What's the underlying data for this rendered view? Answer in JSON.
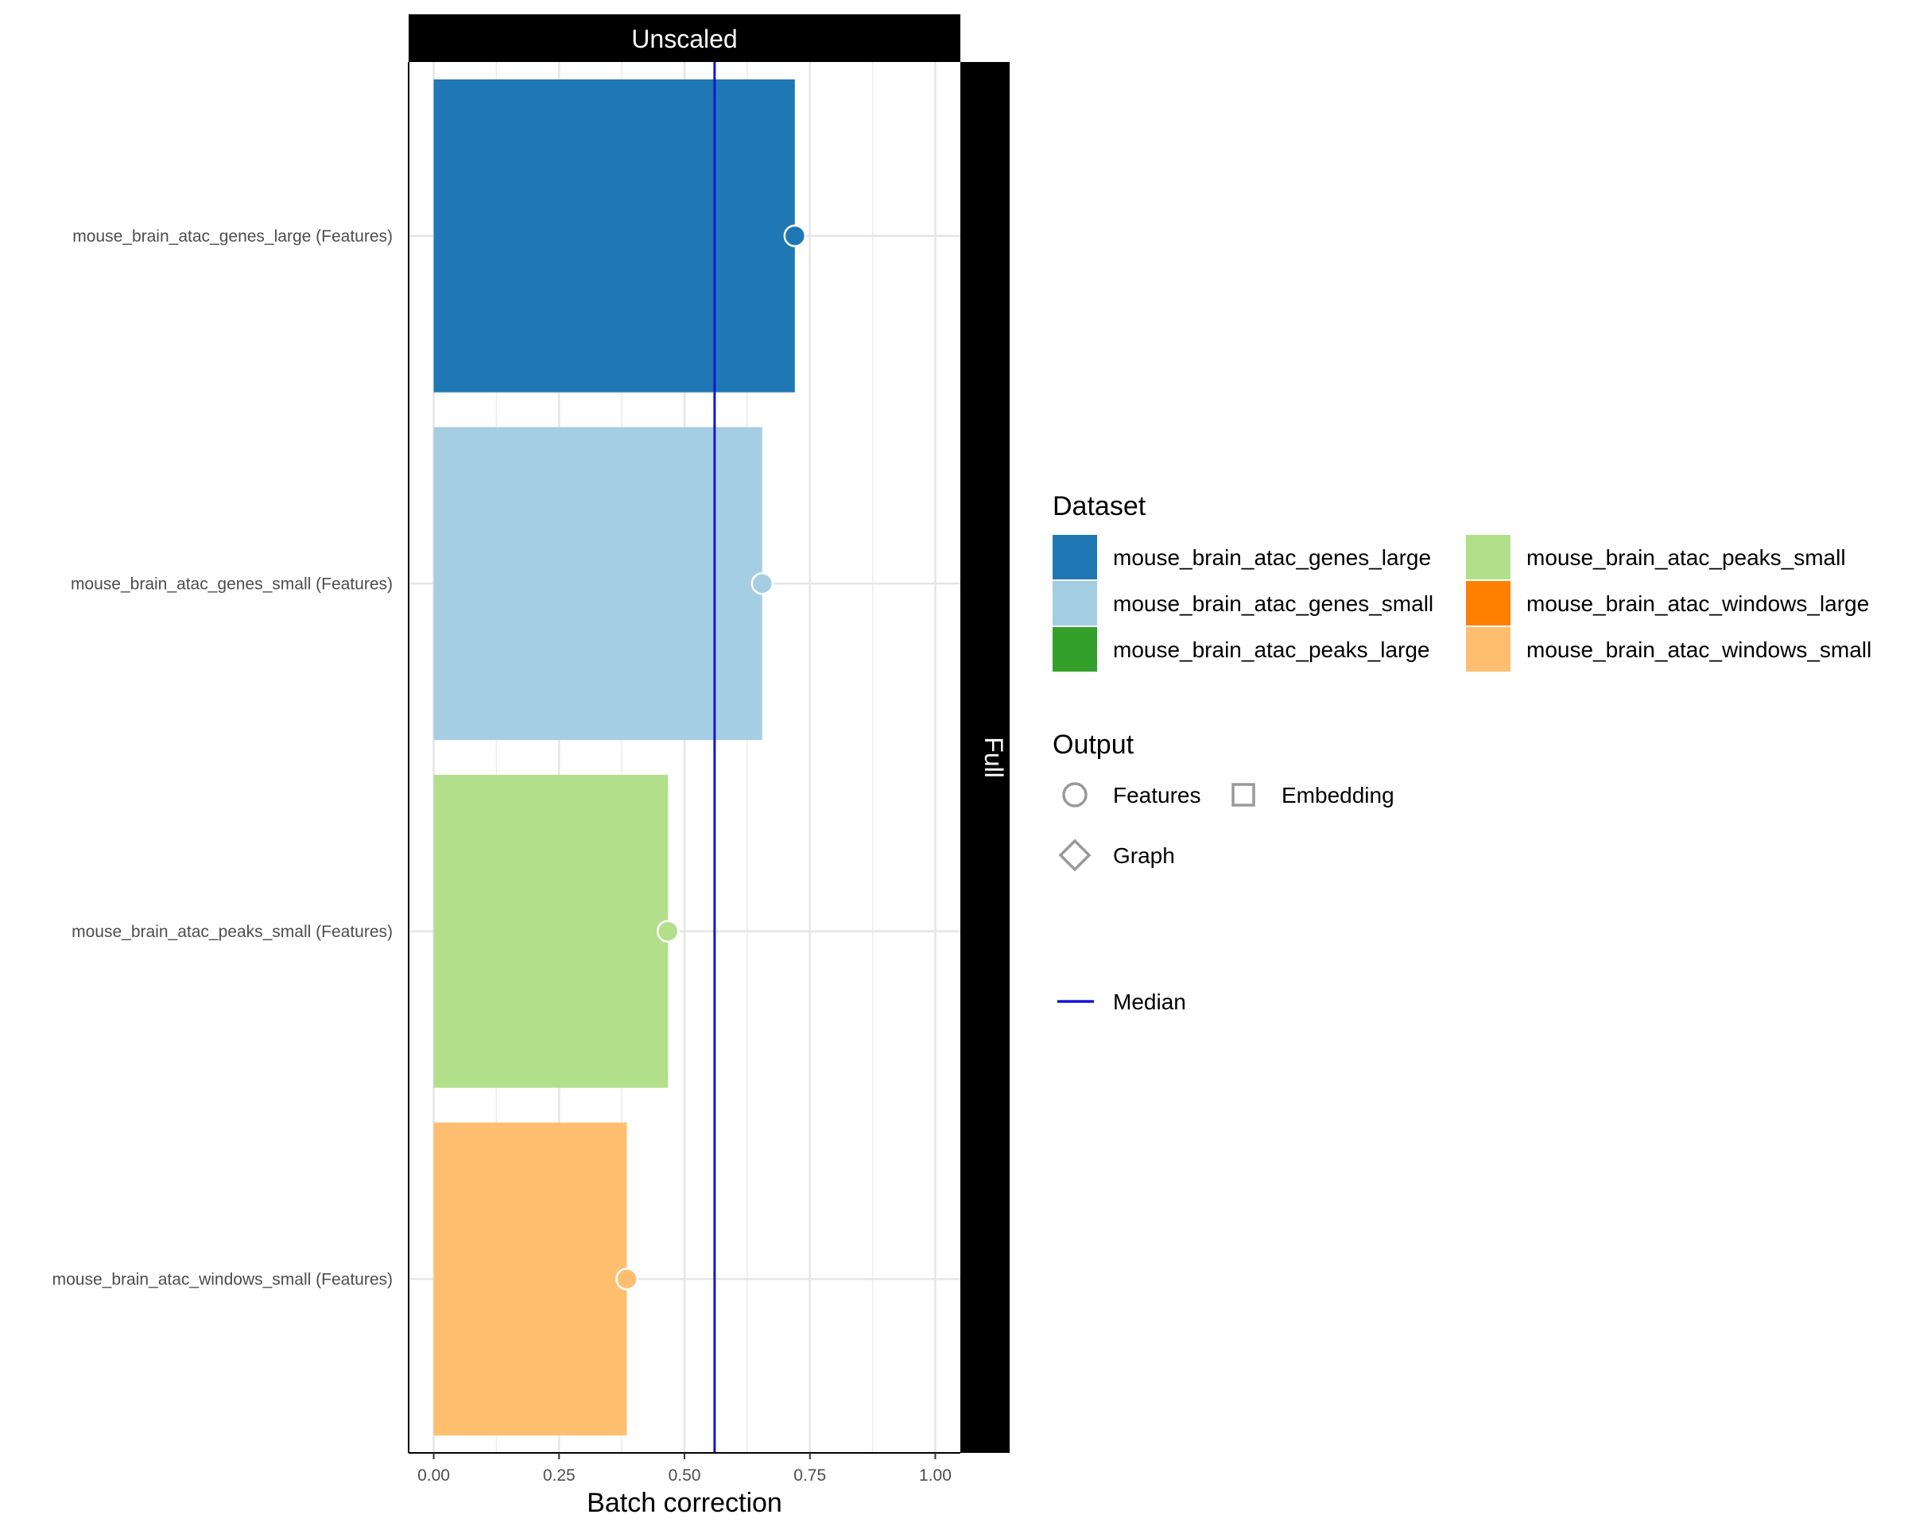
{
  "chart_data": {
    "type": "bar",
    "facet_top": "Unscaled",
    "facet_right": "Full",
    "xlabel": "Batch correction",
    "ylabel": "",
    "xlim": [
      -0.05,
      1.05
    ],
    "x_ticks": [
      0.0,
      0.25,
      0.5,
      0.75,
      1.0
    ],
    "x_tick_labels": [
      "0.00",
      "0.25",
      "0.50",
      "0.75",
      "1.00"
    ],
    "grid": true,
    "legend_position": "right",
    "categories": [
      "mouse_brain_atac_genes_large (Features)",
      "mouse_brain_atac_genes_small (Features)",
      "mouse_brain_atac_peaks_small (Features)",
      "mouse_brain_atac_windows_small (Features)"
    ],
    "values": [
      0.72,
      0.655,
      0.467,
      0.385
    ],
    "bar_colors": [
      "#1f78b4",
      "#a6cee3",
      "#b2df8a",
      "#fdbf6f"
    ],
    "output_type": [
      "Features",
      "Features",
      "Features",
      "Features"
    ],
    "median": 0.56,
    "median_color": "#1515d6",
    "legend_dataset": {
      "title": "Dataset",
      "items": [
        {
          "label": "mouse_brain_atac_genes_large",
          "color": "#1f78b4"
        },
        {
          "label": "mouse_brain_atac_genes_small",
          "color": "#a6cee3"
        },
        {
          "label": "mouse_brain_atac_peaks_large",
          "color": "#33a02c"
        },
        {
          "label": "mouse_brain_atac_peaks_small",
          "color": "#b2df8a"
        },
        {
          "label": "mouse_brain_atac_windows_large",
          "color": "#ff7f00"
        },
        {
          "label": "mouse_brain_atac_windows_small",
          "color": "#fdbf6f"
        }
      ]
    },
    "legend_output": {
      "title": "Output",
      "items": [
        {
          "label": "Features",
          "shape": "circle"
        },
        {
          "label": "Embedding",
          "shape": "square"
        },
        {
          "label": "Graph",
          "shape": "diamond"
        }
      ]
    },
    "legend_line": {
      "label": "Median"
    }
  }
}
